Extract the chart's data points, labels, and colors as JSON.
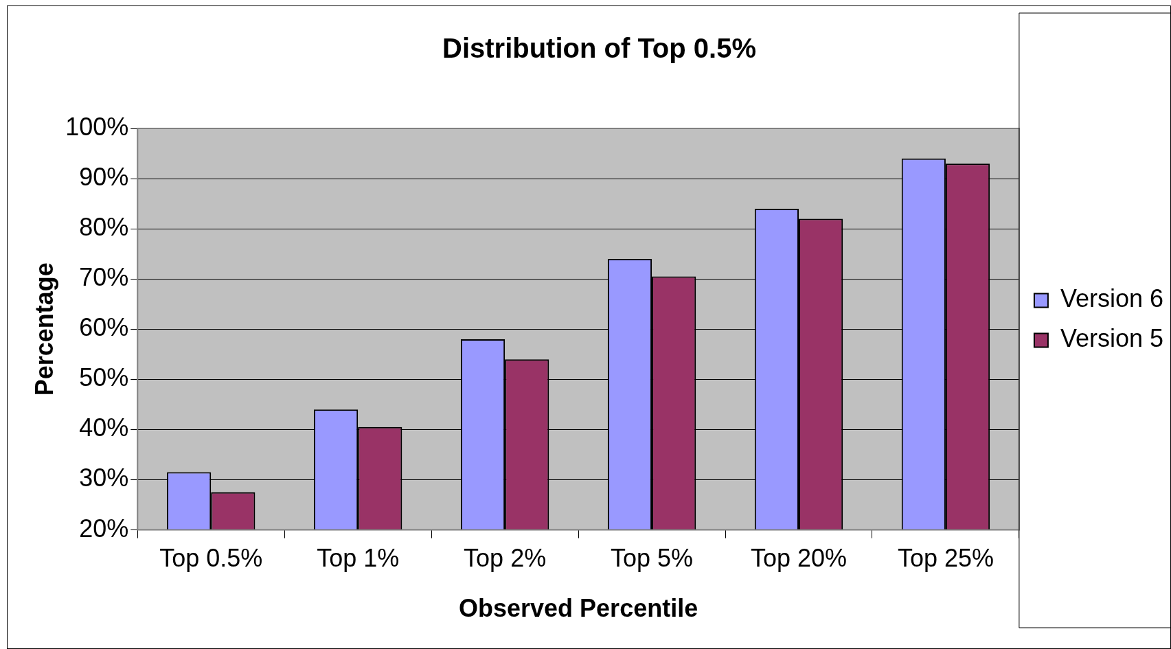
{
  "chart_data": {
    "type": "bar",
    "title": "Distribution of Top 0.5%",
    "xlabel": "Observed Percentile",
    "ylabel": "Percentage",
    "categories": [
      "Top 0.5%",
      "Top 1%",
      "Top 2%",
      "Top 5%",
      "Top 20%",
      "Top 25%"
    ],
    "series": [
      {
        "name": "Version 6",
        "color": "#9999ff",
        "values": [
          31.5,
          44,
          58,
          74,
          84,
          94
        ]
      },
      {
        "name": "Version 5",
        "color": "#993366",
        "values": [
          27.5,
          40.5,
          54,
          70.5,
          82,
          93
        ]
      }
    ],
    "ylim": [
      20,
      100
    ],
    "yticks": [
      {
        "value": 20,
        "label": "20%"
      },
      {
        "value": 30,
        "label": "30%"
      },
      {
        "value": 40,
        "label": "40%"
      },
      {
        "value": 50,
        "label": "50%"
      },
      {
        "value": 60,
        "label": "60%"
      },
      {
        "value": 70,
        "label": "70%"
      },
      {
        "value": 80,
        "label": "80%"
      },
      {
        "value": 90,
        "label": "90%"
      },
      {
        "value": 100,
        "label": "100%"
      }
    ],
    "grid": "y",
    "legend": "right"
  }
}
